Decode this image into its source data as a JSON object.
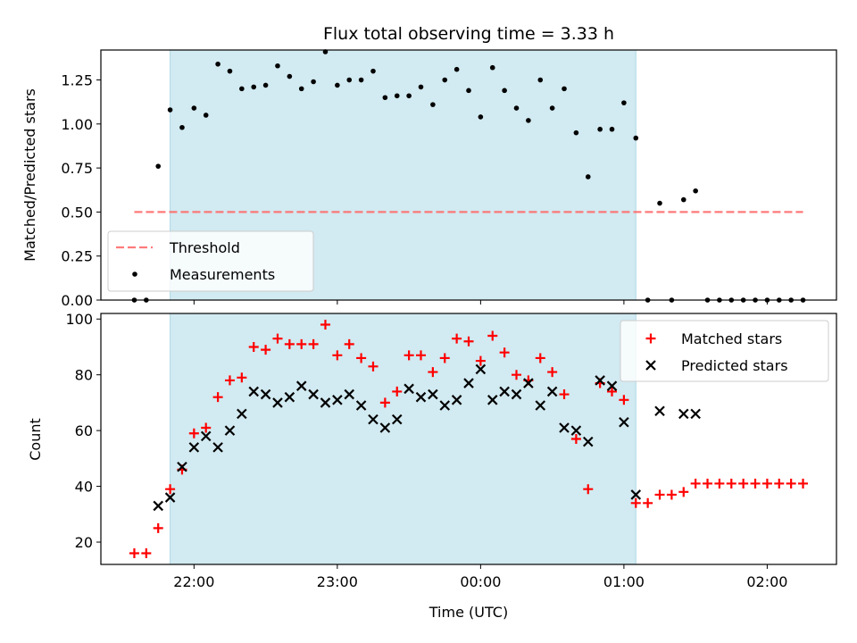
{
  "chart_data": [
    {
      "type": "scatter",
      "title": "Flux total observing time = 3.33 h",
      "xlabel": "",
      "ylabel": "Matched/Predicted stars",
      "ylim": [
        0,
        1.42
      ],
      "yticks": [
        "0.00",
        "0.25",
        "0.50",
        "0.75",
        "1.00",
        "1.25"
      ],
      "x_axis_type": "time",
      "xlim": [
        "21:21",
        "02:29"
      ],
      "xticks_unlabeled": [
        "22:00",
        "23:00",
        "00:00",
        "01:00",
        "02:00"
      ],
      "shaded_interval": [
        "21:50",
        "01:05"
      ],
      "shaded_color": "#add8e6",
      "threshold": {
        "name": "Threshold",
        "value": 0.5,
        "x_range": [
          "21:35",
          "02:15"
        ],
        "color": "#ff6b6b",
        "style": "dashed"
      },
      "legend": {
        "position": "lower-left",
        "entries": [
          "Threshold",
          "Measurements"
        ]
      },
      "series": [
        {
          "name": "Measurements",
          "marker": "dot",
          "color": "#000000",
          "points": [
            [
              "21:35",
              0.0
            ],
            [
              "21:40",
              0.0
            ],
            [
              "21:45",
              0.76
            ],
            [
              "21:50",
              1.08
            ],
            [
              "21:55",
              0.98
            ],
            [
              "22:00",
              1.09
            ],
            [
              "22:05",
              1.05
            ],
            [
              "22:10",
              1.34
            ],
            [
              "22:15",
              1.3
            ],
            [
              "22:20",
              1.2
            ],
            [
              "22:25",
              1.21
            ],
            [
              "22:30",
              1.22
            ],
            [
              "22:35",
              1.33
            ],
            [
              "22:40",
              1.27
            ],
            [
              "22:45",
              1.2
            ],
            [
              "22:50",
              1.24
            ],
            [
              "22:55",
              1.41
            ],
            [
              "23:00",
              1.22
            ],
            [
              "23:05",
              1.25
            ],
            [
              "23:10",
              1.25
            ],
            [
              "23:15",
              1.3
            ],
            [
              "23:20",
              1.15
            ],
            [
              "23:25",
              1.16
            ],
            [
              "23:30",
              1.16
            ],
            [
              "23:35",
              1.21
            ],
            [
              "23:40",
              1.11
            ],
            [
              "23:45",
              1.25
            ],
            [
              "23:50",
              1.31
            ],
            [
              "23:55",
              1.19
            ],
            [
              "00:00",
              1.04
            ],
            [
              "00:05",
              1.32
            ],
            [
              "00:10",
              1.19
            ],
            [
              "00:15",
              1.09
            ],
            [
              "00:20",
              1.02
            ],
            [
              "00:25",
              1.25
            ],
            [
              "00:30",
              1.09
            ],
            [
              "00:35",
              1.2
            ],
            [
              "00:40",
              0.95
            ],
            [
              "00:45",
              0.7
            ],
            [
              "00:50",
              0.97
            ],
            [
              "00:55",
              0.97
            ],
            [
              "01:00",
              1.12
            ],
            [
              "01:05",
              0.92
            ],
            [
              "01:10",
              0.0
            ],
            [
              "01:15",
              0.55
            ],
            [
              "01:20",
              0.0
            ],
            [
              "01:25",
              0.57
            ],
            [
              "01:30",
              0.62
            ],
            [
              "01:35",
              0.0
            ],
            [
              "01:40",
              0.0
            ],
            [
              "01:45",
              0.0
            ],
            [
              "01:50",
              0.0
            ],
            [
              "01:55",
              0.0
            ],
            [
              "02:00",
              0.0
            ],
            [
              "02:05",
              0.0
            ],
            [
              "02:10",
              0.0
            ],
            [
              "02:15",
              0.0
            ]
          ]
        }
      ]
    },
    {
      "type": "scatter",
      "title": "",
      "xlabel": "Time (UTC)",
      "ylabel": "Count",
      "ylim": [
        12,
        102
      ],
      "yticks": [
        "20",
        "40",
        "60",
        "80",
        "100"
      ],
      "x_axis_type": "time",
      "xlim": [
        "21:21",
        "02:29"
      ],
      "xticks": [
        "22:00",
        "23:00",
        "00:00",
        "01:00",
        "02:00"
      ],
      "shaded_interval": [
        "21:50",
        "01:05"
      ],
      "shaded_color": "#add8e6",
      "legend": {
        "position": "top-right",
        "entries": [
          "Matched stars",
          "Predicted stars"
        ]
      },
      "series": [
        {
          "name": "Matched stars",
          "marker": "plus",
          "color": "#ff0000",
          "points": [
            [
              "21:35",
              16
            ],
            [
              "21:40",
              16
            ],
            [
              "21:45",
              25
            ],
            [
              "21:50",
              39
            ],
            [
              "21:55",
              46
            ],
            [
              "22:00",
              59
            ],
            [
              "22:05",
              61
            ],
            [
              "22:10",
              72
            ],
            [
              "22:15",
              78
            ],
            [
              "22:20",
              79
            ],
            [
              "22:25",
              90
            ],
            [
              "22:30",
              89
            ],
            [
              "22:35",
              93
            ],
            [
              "22:40",
              91
            ],
            [
              "22:45",
              91
            ],
            [
              "22:50",
              91
            ],
            [
              "22:55",
              98
            ],
            [
              "23:00",
              87
            ],
            [
              "23:05",
              91
            ],
            [
              "23:10",
              86
            ],
            [
              "23:15",
              83
            ],
            [
              "23:20",
              70
            ],
            [
              "23:25",
              74
            ],
            [
              "23:30",
              87
            ],
            [
              "23:35",
              87
            ],
            [
              "23:40",
              81
            ],
            [
              "23:45",
              86
            ],
            [
              "23:50",
              93
            ],
            [
              "23:55",
              92
            ],
            [
              "00:00",
              85
            ],
            [
              "00:05",
              94
            ],
            [
              "00:10",
              88
            ],
            [
              "00:15",
              80
            ],
            [
              "00:20",
              78
            ],
            [
              "00:25",
              86
            ],
            [
              "00:30",
              81
            ],
            [
              "00:35",
              73
            ],
            [
              "00:40",
              57
            ],
            [
              "00:45",
              39
            ],
            [
              "00:50",
              77
            ],
            [
              "00:55",
              74
            ],
            [
              "01:00",
              71
            ],
            [
              "01:05",
              34
            ],
            [
              "01:10",
              34
            ],
            [
              "01:15",
              37
            ],
            [
              "01:20",
              37
            ],
            [
              "01:25",
              38
            ],
            [
              "01:30",
              41
            ],
            [
              "01:35",
              41
            ],
            [
              "01:40",
              41
            ],
            [
              "01:45",
              41
            ],
            [
              "01:50",
              41
            ],
            [
              "01:55",
              41
            ],
            [
              "02:00",
              41
            ],
            [
              "02:05",
              41
            ],
            [
              "02:10",
              41
            ],
            [
              "02:15",
              41
            ]
          ]
        },
        {
          "name": "Predicted stars",
          "marker": "x",
          "color": "#000000",
          "points": [
            [
              "21:45",
              33
            ],
            [
              "21:50",
              36
            ],
            [
              "21:55",
              47
            ],
            [
              "22:00",
              54
            ],
            [
              "22:05",
              58
            ],
            [
              "22:10",
              54
            ],
            [
              "22:15",
              60
            ],
            [
              "22:20",
              66
            ],
            [
              "22:25",
              74
            ],
            [
              "22:30",
              73
            ],
            [
              "22:35",
              70
            ],
            [
              "22:40",
              72
            ],
            [
              "22:45",
              76
            ],
            [
              "22:50",
              73
            ],
            [
              "22:55",
              70
            ],
            [
              "23:00",
              71
            ],
            [
              "23:05",
              73
            ],
            [
              "23:10",
              69
            ],
            [
              "23:15",
              64
            ],
            [
              "23:20",
              61
            ],
            [
              "23:25",
              64
            ],
            [
              "23:30",
              75
            ],
            [
              "23:35",
              72
            ],
            [
              "23:40",
              73
            ],
            [
              "23:45",
              69
            ],
            [
              "23:50",
              71
            ],
            [
              "23:55",
              77
            ],
            [
              "00:00",
              82
            ],
            [
              "00:05",
              71
            ],
            [
              "00:10",
              74
            ],
            [
              "00:15",
              73
            ],
            [
              "00:20",
              77
            ],
            [
              "00:25",
              69
            ],
            [
              "00:30",
              74
            ],
            [
              "00:35",
              61
            ],
            [
              "00:40",
              60
            ],
            [
              "00:45",
              56
            ],
            [
              "00:50",
              78
            ],
            [
              "00:55",
              76
            ],
            [
              "01:00",
              63
            ],
            [
              "01:05",
              37
            ],
            [
              "01:15",
              67
            ],
            [
              "01:25",
              66
            ],
            [
              "01:30",
              66
            ]
          ]
        }
      ]
    }
  ]
}
